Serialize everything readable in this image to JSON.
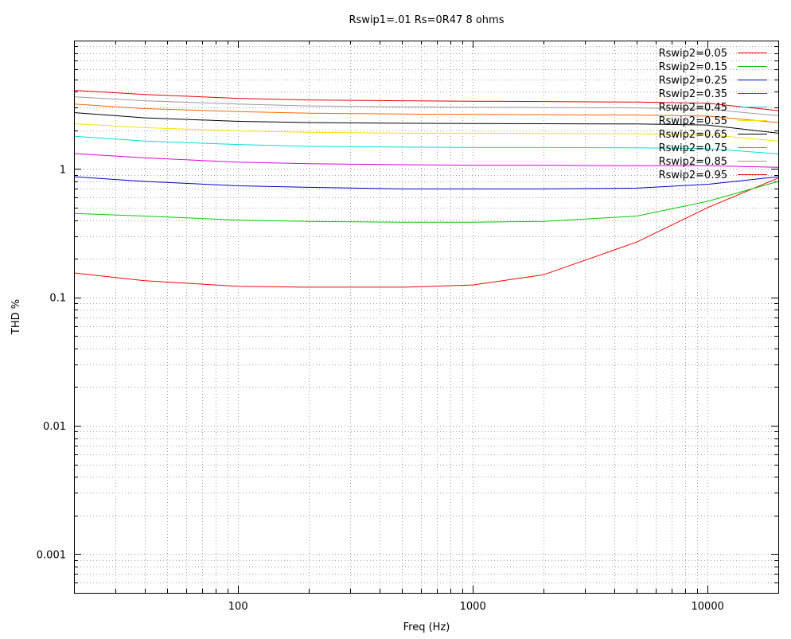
{
  "chart_data": {
    "type": "line",
    "title": "Rswip1=.01 Rs=0R47 8 ohms",
    "xlabel": "Freq (Hz)",
    "ylabel": "THD %",
    "x_scale": "log",
    "y_scale": "log",
    "xlim": [
      20,
      20000
    ],
    "ylim": [
      0.0005,
      10
    ],
    "grid": true,
    "legend_position": "top-right",
    "x_ticks": [
      100,
      1000,
      10000
    ],
    "x_tick_labels": [
      "100",
      "1000",
      "10000"
    ],
    "y_ticks": [
      0.001,
      0.01,
      0.1,
      1
    ],
    "y_tick_labels": [
      "0.001",
      "0.01",
      "0.1",
      "1"
    ],
    "x": [
      20,
      40,
      100,
      200,
      500,
      1000,
      2000,
      5000,
      10000,
      20000
    ],
    "series": [
      {
        "name": "Rswip2=0.05",
        "color": "#ff0000",
        "values": [
          0.155,
          0.135,
          0.122,
          0.12,
          0.12,
          0.125,
          0.15,
          0.27,
          0.5,
          0.85
        ]
      },
      {
        "name": "Rswip2=0.15",
        "color": "#00cc00",
        "values": [
          0.45,
          0.43,
          0.4,
          0.39,
          0.385,
          0.385,
          0.39,
          0.43,
          0.56,
          0.8
        ]
      },
      {
        "name": "Rswip2=0.25",
        "color": "#0000cc",
        "values": [
          0.87,
          0.8,
          0.74,
          0.72,
          0.7,
          0.7,
          0.7,
          0.71,
          0.76,
          0.87
        ]
      },
      {
        "name": "Rswip2=0.35",
        "color": "#dd00dd",
        "values": [
          1.32,
          1.22,
          1.13,
          1.1,
          1.08,
          1.07,
          1.07,
          1.06,
          1.06,
          1.03
        ]
      },
      {
        "name": "Rswip2=0.45",
        "color": "#00dddd",
        "values": [
          1.8,
          1.65,
          1.55,
          1.5,
          1.48,
          1.47,
          1.47,
          1.46,
          1.44,
          1.31
        ]
      },
      {
        "name": "Rswip2=0.55",
        "color": "#ffe000",
        "values": [
          2.25,
          2.1,
          1.98,
          1.93,
          1.9,
          1.9,
          1.89,
          1.88,
          1.85,
          1.65
        ]
      },
      {
        "name": "Rswip2=0.65",
        "color": "#000000",
        "values": [
          2.75,
          2.5,
          2.35,
          2.3,
          2.27,
          2.26,
          2.25,
          2.24,
          2.2,
          1.9
        ]
      },
      {
        "name": "Rswip2=0.75",
        "color": "#ff6600",
        "values": [
          3.2,
          2.95,
          2.8,
          2.72,
          2.68,
          2.66,
          2.65,
          2.63,
          2.58,
          2.3
        ]
      },
      {
        "name": "Rswip2=0.85",
        "color": "#999999",
        "values": [
          3.65,
          3.4,
          3.2,
          3.1,
          3.05,
          3.03,
          3.01,
          2.99,
          2.92,
          2.6
        ]
      },
      {
        "name": "Rswip2=0.95",
        "color": "#ee0000",
        "values": [
          4.1,
          3.8,
          3.55,
          3.45,
          3.4,
          3.37,
          3.35,
          3.32,
          3.25,
          2.85
        ]
      }
    ]
  }
}
